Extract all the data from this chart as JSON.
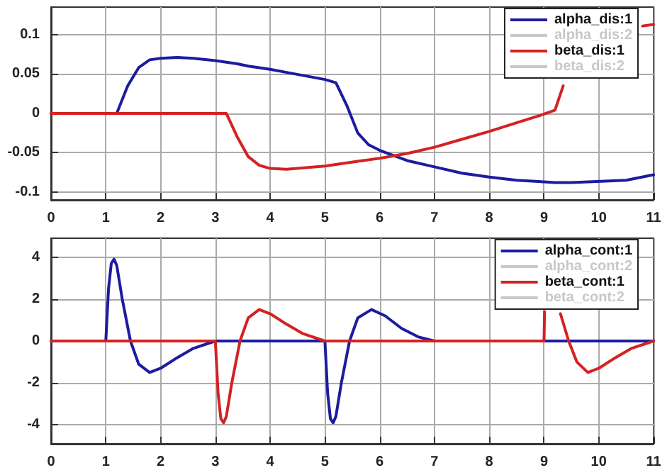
{
  "chart_data": [
    {
      "type": "line",
      "xlim": [
        0,
        11
      ],
      "xticks": [
        0,
        1,
        2,
        3,
        4,
        5,
        6,
        7,
        8,
        9,
        10,
        11
      ],
      "ylim": [
        -0.11,
        0.135
      ],
      "yticks": [
        -0.1,
        -0.05,
        0,
        0.05,
        0.1
      ],
      "grid": true,
      "legend": "top right",
      "series": [
        {
          "name": "alpha_dis:1",
          "color": "#1c1ca0",
          "x": [
            0,
            0.5,
            1,
            1.2,
            1.4,
            1.6,
            1.8,
            2,
            2.3,
            2.6,
            3,
            3.2,
            3.4,
            3.6,
            3.8,
            4,
            4.3,
            5,
            5.2,
            5.4,
            5.6,
            5.8,
            6,
            6.5,
            7,
            7.5,
            8,
            8.5,
            9,
            9.2,
            9.4,
            9.5,
            10.5,
            11
          ],
          "values": [
            0,
            0,
            0,
            0,
            0.035,
            0.058,
            0.068,
            0.07,
            0.071,
            0.07,
            0.067,
            0.065,
            0.063,
            0.06,
            0.058,
            0.056,
            0.052,
            0.043,
            0.039,
            0.01,
            -0.025,
            -0.04,
            -0.047,
            -0.06,
            -0.068,
            -0.076,
            -0.081,
            -0.085,
            -0.087,
            -0.088,
            -0.088,
            -0.088,
            -0.085,
            -0.078
          ]
        },
        {
          "name": "alpha_dis:2",
          "color": "#c8c8c8"
        },
        {
          "name": "beta_dis:1",
          "color": "#d42222",
          "x": [
            0,
            1,
            2,
            3,
            3.2,
            3.4,
            3.6,
            3.8,
            4,
            4.3,
            5,
            5.2,
            5.4,
            5.6,
            5.8,
            6,
            6.5,
            7,
            7.5,
            8,
            8.5,
            9,
            9.2,
            9.35,
            10.5,
            10.8,
            11
          ],
          "values": [
            0,
            0,
            0,
            0,
            0,
            -0.03,
            -0.055,
            -0.066,
            -0.07,
            -0.071,
            -0.067,
            -0.065,
            -0.063,
            -0.061,
            -0.059,
            -0.057,
            -0.051,
            -0.043,
            -0.033,
            -0.023,
            -0.012,
            -0.001,
            0.004,
            0.035,
            null,
            0.111,
            0.113
          ]
        },
        {
          "name": "beta_dis:2",
          "color": "#c8c8c8"
        }
      ]
    },
    {
      "type": "line",
      "xlim": [
        0,
        11
      ],
      "xticks": [
        0,
        1,
        2,
        3,
        4,
        5,
        6,
        7,
        8,
        9,
        10,
        11
      ],
      "ylim": [
        -4.9,
        4.9
      ],
      "yticks": [
        -4,
        -2,
        0,
        2,
        4
      ],
      "grid": true,
      "legend": "top right",
      "series": [
        {
          "name": "alpha_cont:1",
          "color": "#1c1ca0",
          "x": [
            0,
            1,
            1.05,
            1.1,
            1.15,
            1.2,
            1.3,
            1.45,
            1.6,
            1.8,
            2,
            2.3,
            2.6,
            3,
            5,
            5.05,
            5.1,
            5.15,
            5.2,
            5.3,
            5.45,
            5.6,
            5.85,
            6.1,
            6.4,
            6.7,
            7,
            11
          ],
          "values": [
            0,
            0,
            2.5,
            3.7,
            3.9,
            3.6,
            2,
            0,
            -1.1,
            -1.5,
            -1.3,
            -0.8,
            -0.35,
            0,
            0,
            -2.5,
            -3.7,
            -3.9,
            -3.6,
            -2,
            0,
            1.1,
            1.5,
            1.2,
            0.6,
            0.2,
            0,
            0
          ]
        },
        {
          "name": "alpha_cont:2",
          "color": "#c8c8c8"
        },
        {
          "name": "beta_cont:1",
          "color": "#d42222",
          "x": [
            0,
            3,
            3.05,
            3.1,
            3.15,
            3.2,
            3.3,
            3.45,
            3.6,
            3.8,
            4,
            4.3,
            4.6,
            5,
            9,
            9.01,
            9.1,
            9.3,
            9.45,
            9.6,
            9.8,
            10,
            10.3,
            10.6,
            11
          ],
          "values": [
            0,
            0,
            -2.5,
            -3.7,
            -3.9,
            -3.6,
            -2,
            0,
            1.1,
            1.5,
            1.3,
            0.8,
            0.35,
            0,
            0,
            1.4,
            null,
            1.3,
            0,
            -1,
            -1.5,
            -1.3,
            -0.8,
            -0.35,
            0
          ]
        },
        {
          "name": "beta_cont:2",
          "color": "#c8c8c8"
        }
      ]
    }
  ]
}
